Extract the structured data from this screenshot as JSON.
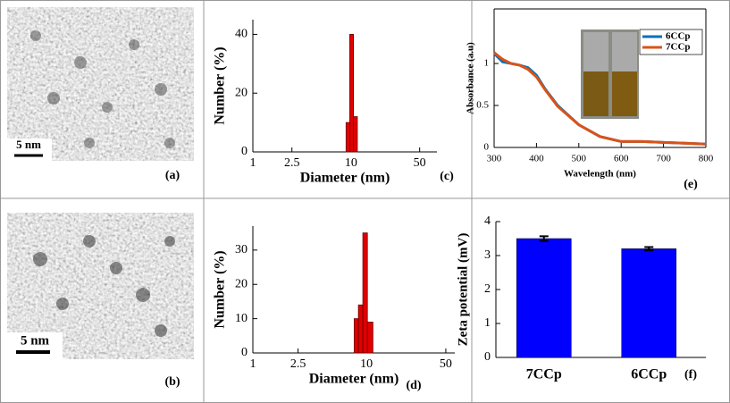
{
  "panels": [
    {
      "scale_bar": "5 nm",
      "label": "(a)"
    },
    {
      "scale_bar": "5 nm",
      "label": "(b)"
    }
  ],
  "chart_data": [
    {
      "type": "histogram",
      "label": "(c)",
      "xlabel": "Diameter (nm)",
      "ylabel": "Number (%)",
      "xscale": "log",
      "xlim": [
        1,
        75
      ],
      "xticks": [
        1,
        2.5,
        10,
        50
      ],
      "ylim": [
        0,
        45
      ],
      "yticks": [
        0,
        20,
        40
      ],
      "bins": [
        8.9,
        9.7,
        10.6,
        11.6
      ],
      "counts": [
        10,
        40,
        12
      ],
      "color": "#e00000"
    },
    {
      "type": "line",
      "label": "(e)",
      "xlabel": "Wavelength (nm)",
      "ylabel": "Absorbance (a.u)",
      "xlim": [
        300,
        800
      ],
      "xticks": [
        300,
        400,
        500,
        600,
        700,
        800
      ],
      "ylim": [
        0,
        1.65
      ],
      "yticks": [
        0,
        0.5,
        1
      ],
      "x": [
        300,
        320,
        340,
        360,
        380,
        400,
        420,
        450,
        500,
        550,
        600,
        650,
        700,
        750,
        800
      ],
      "series": [
        {
          "name": "6CCp",
          "color": "#0072bd",
          "values": [
            1.12,
            1.02,
            1.0,
            0.98,
            0.95,
            0.86,
            0.7,
            0.5,
            0.27,
            0.13,
            0.07,
            0.07,
            0.06,
            0.05,
            0.04
          ]
        },
        {
          "name": "7CCp",
          "color": "#d95319",
          "values": [
            1.13,
            1.05,
            1.0,
            0.98,
            0.93,
            0.84,
            0.69,
            0.49,
            0.27,
            0.13,
            0.07,
            0.07,
            0.06,
            0.05,
            0.04
          ]
        }
      ]
    },
    {
      "type": "histogram",
      "label": "(d)",
      "xlabel": "Diameter (nm)",
      "ylabel": "Number (%)",
      "xscale": "log",
      "xlim": [
        1,
        60
      ],
      "xticks": [
        1,
        2.5,
        10,
        50
      ],
      "ylim": [
        0,
        37
      ],
      "yticks": [
        0,
        10,
        20,
        30
      ],
      "bins": [
        7.8,
        8.5,
        9.3,
        10.2,
        11.4
      ],
      "counts": [
        10,
        14,
        35,
        9
      ],
      "color": "#e00000"
    },
    {
      "type": "bar",
      "label": "(f)",
      "ylabel": "Zeta potential (mV)",
      "categories": [
        "7CCp",
        "6CCp"
      ],
      "values": [
        3.5,
        3.2
      ],
      "errors": [
        0.07,
        0.05
      ],
      "color": "#0000ff",
      "ylim": [
        0,
        4
      ],
      "yticks": [
        0,
        1,
        2,
        3,
        4
      ]
    }
  ]
}
